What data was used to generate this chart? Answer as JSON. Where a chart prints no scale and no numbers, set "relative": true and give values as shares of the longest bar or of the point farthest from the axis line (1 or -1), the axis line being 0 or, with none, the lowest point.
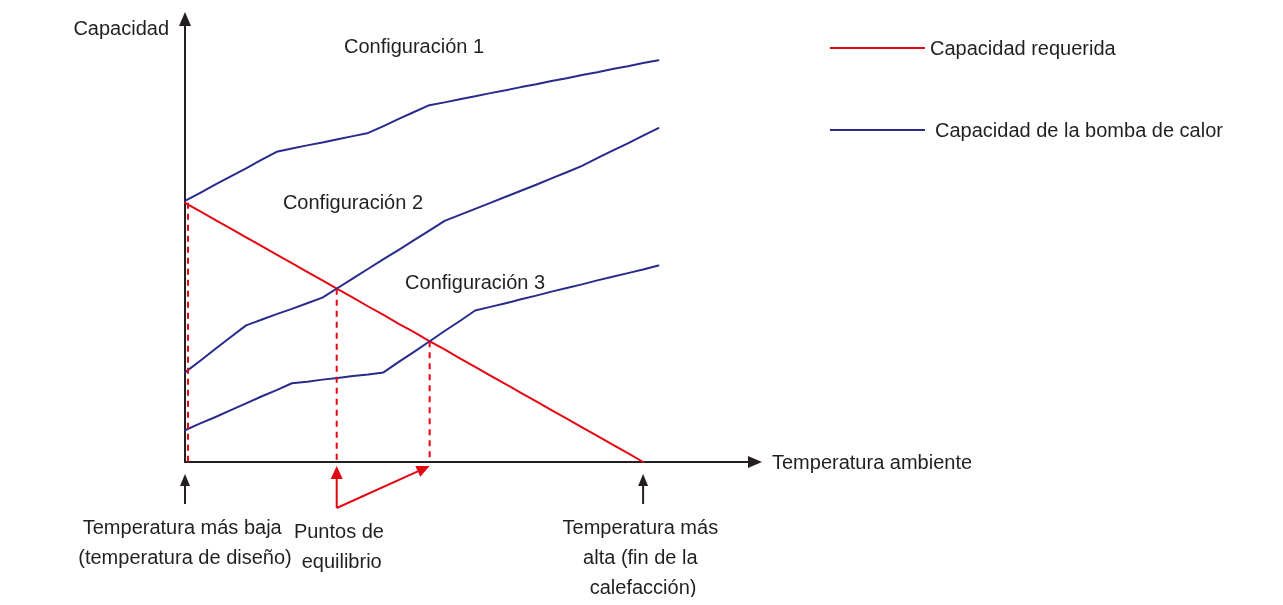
{
  "chart_data": {
    "type": "line",
    "relative": true,
    "ylabel": "Capacidad",
    "xlabel": "Temperatura ambiente",
    "legend": "top right",
    "grid": false,
    "marker": "none",
    "line_style": "solid",
    "categories": [
      null,
      null,
      null,
      null,
      null,
      null,
      null,
      null,
      null,
      null,
      null,
      null,
      null,
      null,
      null,
      null,
      null,
      null,
      null,
      null,
      null,
      null,
      null,
      null,
      null,
      null,
      null,
      null,
      null,
      null,
      null,
      null,
      null,
      null,
      null,
      null,
      null,
      null
    ],
    "series": [
      {
        "name": "Capacidad requerida",
        "color": "#e30613",
        "values": [
          0.645,
          0.624,
          0.602,
          0.581,
          0.559,
          0.538,
          0.516,
          0.495,
          0.473,
          0.452,
          0.43,
          0.409,
          0.387,
          0.366,
          0.344,
          0.323,
          0.301,
          0.28,
          0.258,
          0.237,
          0.215,
          0.194,
          0.172,
          0.151,
          0.129,
          0.108,
          0.086,
          0.065,
          0.043,
          0.022,
          0,
          null,
          null,
          null,
          null,
          null,
          null,
          null
        ]
      },
      {
        "name": "Configuración 1",
        "color": "#262b8c",
        "values": [
          0.65,
          0.67,
          0.691,
          0.711,
          0.731,
          0.752,
          0.772,
          0.78,
          0.788,
          0.795,
          0.803,
          0.811,
          0.819,
          0.836,
          0.854,
          0.871,
          0.888,
          0.895,
          0.903,
          0.91,
          0.918,
          0.925,
          0.933,
          0.94,
          0.948,
          0.955,
          0.963,
          0.97,
          0.978,
          0.985,
          0.993,
          1,
          null,
          null,
          null,
          null,
          null,
          null
        ]
      },
      {
        "name": "Configuración 2",
        "color": "#262b8c",
        "values": [
          0.223,
          0.252,
          0.282,
          0.311,
          0.34,
          0.354,
          0.368,
          0.381,
          0.395,
          0.409,
          0.433,
          0.457,
          0.481,
          0.505,
          0.528,
          0.552,
          0.576,
          0.6,
          0.615,
          0.63,
          0.645,
          0.66,
          0.675,
          0.69,
          0.706,
          0.721,
          0.737,
          0.756,
          0.775,
          0.793,
          0.812,
          0.831,
          null,
          null,
          null,
          null,
          null,
          null
        ]
      },
      {
        "name": "Configuración 3",
        "color": "#262b8c",
        "values": [
          0.079,
          0.096,
          0.112,
          0.129,
          0.146,
          0.163,
          0.179,
          0.196,
          0.2,
          0.205,
          0.209,
          0.214,
          0.218,
          0.223,
          0.249,
          0.274,
          0.3,
          0.326,
          0.351,
          0.377,
          0.386,
          0.395,
          0.405,
          0.414,
          0.424,
          0.433,
          0.442,
          0.452,
          0.461,
          0.47,
          0.479,
          0.489,
          null,
          null,
          null,
          null,
          null,
          null
        ]
      }
    ],
    "annotations": [
      "Capacidad de la bomba de calor",
      "Temperatura más baja (temperatura de diseño)",
      "Puntos de equilibrio",
      "Temperatura más alta (fin de la calefacción)"
    ]
  }
}
